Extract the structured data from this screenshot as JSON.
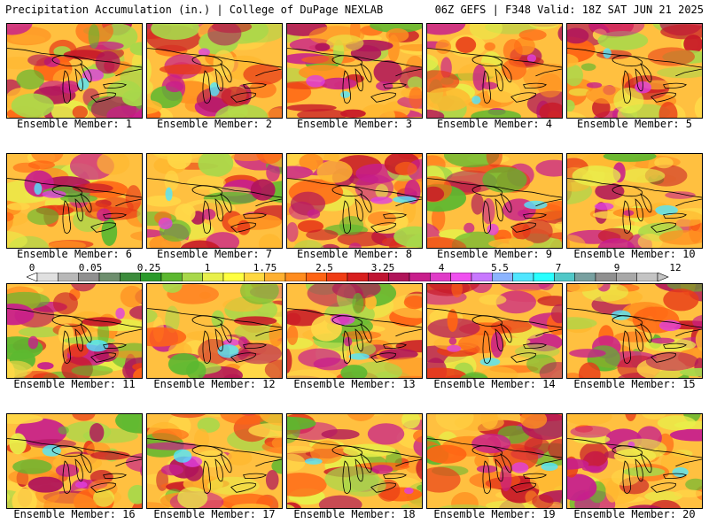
{
  "header": {
    "title_left": "Precipitation Accumulation (in.) | College of DuPage NEXLAB",
    "title_right": "06Z GEFS | F348 Valid: 18Z SAT JUN 21 2025"
  },
  "panels": [
    {
      "label": "Ensemble Member: 1"
    },
    {
      "label": "Ensemble Member: 2"
    },
    {
      "label": "Ensemble Member: 3"
    },
    {
      "label": "Ensemble Member: 4"
    },
    {
      "label": "Ensemble Member: 5"
    },
    {
      "label": "Ensemble Member: 6"
    },
    {
      "label": "Ensemble Member: 7"
    },
    {
      "label": "Ensemble Member: 8"
    },
    {
      "label": "Ensemble Member: 9"
    },
    {
      "label": "Ensemble Member: 10"
    },
    {
      "label": "Ensemble Member: 11"
    },
    {
      "label": "Ensemble Member: 12"
    },
    {
      "label": "Ensemble Member: 13"
    },
    {
      "label": "Ensemble Member: 14"
    },
    {
      "label": "Ensemble Member: 15"
    },
    {
      "label": "Ensemble Member: 16"
    },
    {
      "label": "Ensemble Member: 17"
    },
    {
      "label": "Ensemble Member: 18"
    },
    {
      "label": "Ensemble Member: 19"
    },
    {
      "label": "Ensemble Member: 20"
    }
  ],
  "colorbar": {
    "tick_labels": [
      "0",
      "0.05",
      "0.25",
      "1",
      "1.75",
      "2.5",
      "3.25",
      "4",
      "5.5",
      "7",
      "9",
      "12"
    ],
    "colors": [
      "#e0e0e0",
      "#b8b8b8",
      "#909090",
      "#6e8f6e",
      "#3c8c3c",
      "#2a9a2a",
      "#5cb830",
      "#a8d84a",
      "#e8f04a",
      "#ffff40",
      "#ffd840",
      "#ffb030",
      "#ff8c1e",
      "#ff6414",
      "#f03c14",
      "#d81e1e",
      "#c01432",
      "#b0145a",
      "#c81e8c",
      "#e03cc8",
      "#f050f0",
      "#c878ff",
      "#8cb4ff",
      "#50e6ff",
      "#28ffff",
      "#50c8c8",
      "#78a0a0",
      "#909090",
      "#a8a8a8",
      "#c4c4c4"
    ]
  }
}
